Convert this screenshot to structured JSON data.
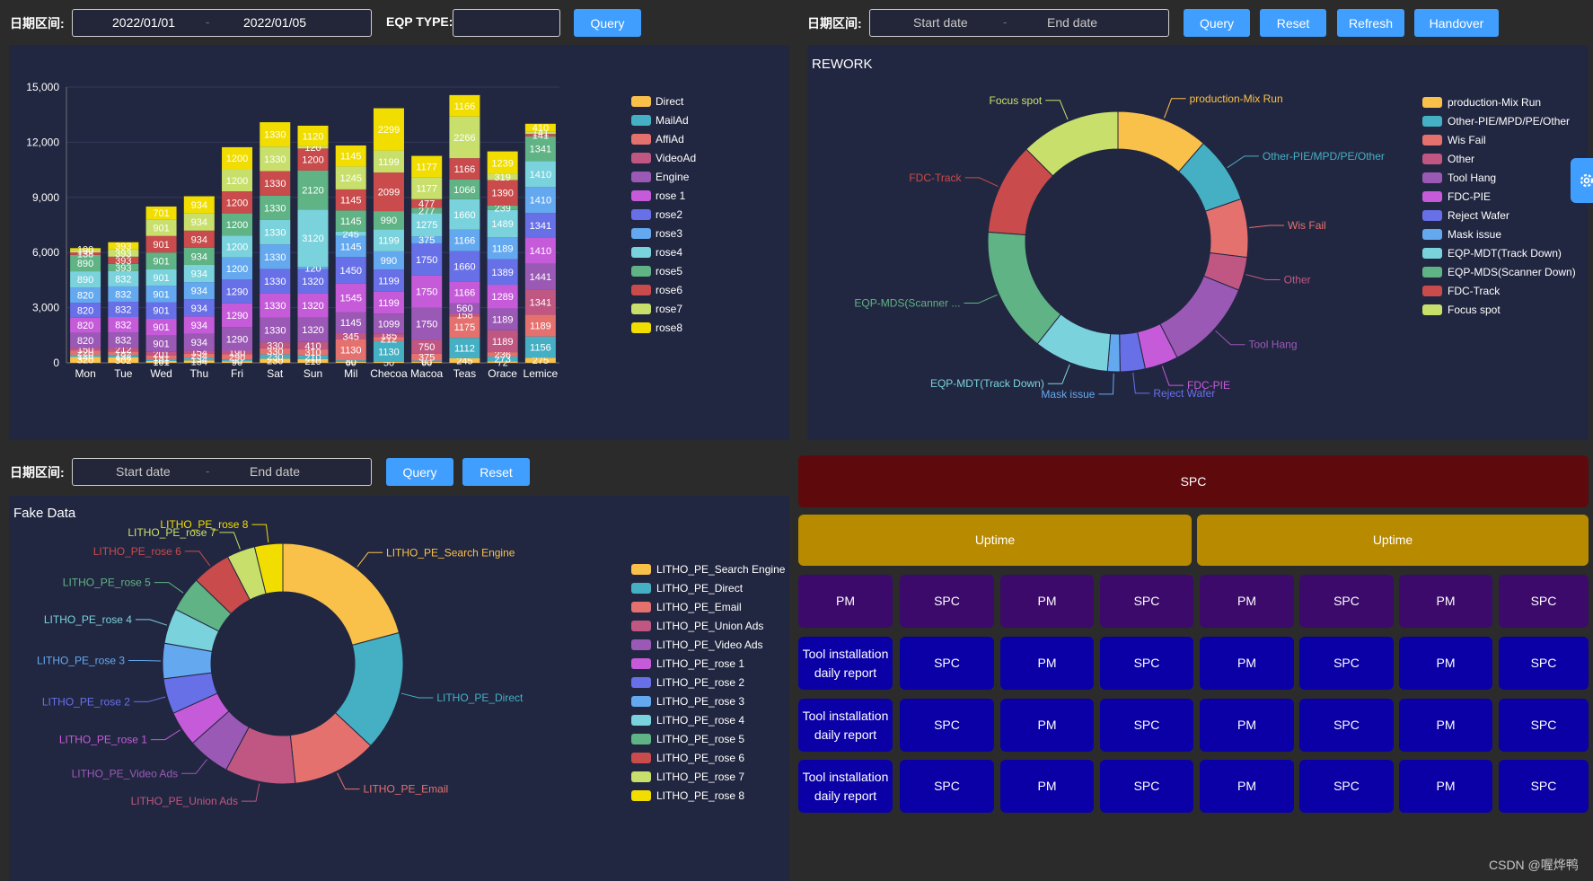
{
  "colors": {
    "bg": "#2b2b2b",
    "panel": "#222741",
    "button": "#409eff",
    "palette": [
      "#f9c14a",
      "#45b0c4",
      "#e5716f",
      "#c05782",
      "#9b59b6",
      "#c65bd9",
      "#6870e8",
      "#64a9ef",
      "#7ad2dc",
      "#5fb384",
      "#c94b4b",
      "#c8e06b",
      "#f1de00"
    ]
  },
  "top_left": {
    "date_label": "日期区间:",
    "start_value": "2022/01/01",
    "separator": "-",
    "end_value": "2022/01/05",
    "eqp_label": "EQP TYPE:",
    "eqp_value": "",
    "query_label": "Query"
  },
  "top_right": {
    "date_label": "日期区间:",
    "start_placeholder": "Start date",
    "separator": "-",
    "end_placeholder": "End date",
    "query_label": "Query",
    "reset_label": "Reset",
    "refresh_label": "Refresh",
    "handover_label": "Handover"
  },
  "bottom_left": {
    "date_label": "日期区间:",
    "start_placeholder": "Start date",
    "separator": "-",
    "end_placeholder": "End date",
    "query_label": "Query",
    "reset_label": "Reset"
  },
  "tiles": {
    "row0": [
      "SPC"
    ],
    "row1": [
      "Uptime",
      "Uptime"
    ],
    "row2": [
      "PM",
      "SPC",
      "PM",
      "SPC",
      "PM",
      "SPC",
      "PM",
      "SPC"
    ],
    "row3": [
      "Tool installation daily report",
      "SPC",
      "PM",
      "SPC",
      "PM",
      "SPC",
      "PM",
      "SPC"
    ],
    "row4": [
      "Tool installation daily report",
      "SPC",
      "PM",
      "SPC",
      "PM",
      "SPC",
      "PM",
      "SPC"
    ],
    "row5": [
      "Tool installation daily report",
      "SPC",
      "PM",
      "SPC",
      "PM",
      "SPC",
      "PM",
      "SPC"
    ]
  },
  "watermark": "CSDN @喔烨鸭",
  "chart_data": [
    {
      "type": "bar",
      "stacked": true,
      "title": "",
      "categories": [
        "Mon",
        "Tue",
        "Wed",
        "Thu",
        "Fri",
        "Sat",
        "Sun",
        "Mil",
        "Checoa",
        "Macoa",
        "Teas",
        "Orace",
        "Lemice"
      ],
      "ylim": [
        0,
        15000
      ],
      "yticks": [
        "0",
        "3,000",
        "6,000",
        "9,000",
        "12,000",
        "15,000"
      ],
      "legend_position": "right",
      "series": [
        {
          "name": "Direct",
          "values": [
            320,
            302,
            101,
            134,
            90,
            230,
            210,
            60,
            50,
            60,
            245,
            72,
            275
          ]
        },
        {
          "name": "MailAd",
          "values": [
            120,
            132,
            101,
            134,
            90,
            230,
            210,
            80,
            1130,
            65,
            1112,
            273,
            1156
          ]
        },
        {
          "name": "AffiAd",
          "values": [
            220,
            182,
            191,
            234,
            290,
            330,
            310,
            1130,
            212,
            375,
            1175,
            236,
            1189
          ]
        },
        {
          "name": "VideoAd",
          "values": [
            150,
            212,
            201,
            154,
            190,
            330,
            410,
            345,
            185,
            750,
            158,
            1189,
            1341
          ]
        },
        {
          "name": "Engine",
          "values": [
            820,
            832,
            901,
            934,
            1290,
            1330,
            1320,
            1145,
            1099,
            1750,
            560,
            1189,
            1441
          ]
        },
        {
          "name": "rose 1",
          "values": [
            820,
            832,
            901,
            934,
            1290,
            1330,
            1320,
            1545,
            1199,
            1750,
            1166,
            1289,
            1410
          ]
        },
        {
          "name": "rose2",
          "values": [
            820,
            832,
            901,
            934,
            1290,
            1330,
            1320,
            1450,
            1199,
            1750,
            1660,
            1389,
            1341
          ]
        },
        {
          "name": "rose3",
          "values": [
            820,
            832,
            901,
            934,
            1200,
            1330,
            120,
            1145,
            990,
            375,
            1166,
            1189,
            1410
          ]
        },
        {
          "name": "rose4",
          "values": [
            890,
            832,
            901,
            934,
            1200,
            1330,
            3120,
            245,
            1199,
            1275,
            1660,
            1489,
            1410
          ]
        },
        {
          "name": "rose5",
          "values": [
            890,
            393,
            901,
            934,
            1200,
            1330,
            2120,
            1145,
            990,
            277,
            1066,
            239,
            1341
          ]
        },
        {
          "name": "rose6",
          "values": [
            138,
            393,
            901,
            934,
            1200,
            1330,
            1200,
            1145,
            2099,
            477,
            1166,
            1390,
            141
          ]
        },
        {
          "name": "rose7",
          "values": [
            130,
            393,
            901,
            934,
            1200,
            1330,
            120,
            1245,
            1199,
            1177,
            2266,
            319,
            141
          ]
        },
        {
          "name": "rose8",
          "values": [
            100,
            393,
            701,
            934,
            1200,
            1330,
            1120,
            1145,
            2299,
            1177,
            1166,
            1239,
            410
          ]
        }
      ]
    },
    {
      "type": "pie",
      "donut": true,
      "title": "REWORK",
      "legend_position": "right",
      "slices": [
        {
          "name": "production-Mix Run",
          "value": 11
        },
        {
          "name": "Other-PIE/MPD/PE/Other",
          "value": 8
        },
        {
          "name": "Wis Fail",
          "value": 7
        },
        {
          "name": "Other",
          "value": 4
        },
        {
          "name": "Tool Hang",
          "value": 11
        },
        {
          "name": "FDC-PIE",
          "value": 4
        },
        {
          "name": "Reject Wafer",
          "value": 3
        },
        {
          "name": "Mask issue",
          "value": 1.5
        },
        {
          "name": "EQP-MDT(Track Down)",
          "value": 9
        },
        {
          "name": "EQP-MDS(Scanner Down)",
          "value": 15
        },
        {
          "name": "FDC-Track",
          "value": 11
        },
        {
          "name": "Focus spot",
          "value": 12
        }
      ],
      "outer_labels": [
        "production-Mix Run",
        "Other-PIE/MPD/PE/Other",
        "Wis Fail",
        "Other",
        "Tool Hang",
        "FDC-PIE",
        "Reject Wafer",
        "Mask issue",
        "EQP-MDT(Track Down)",
        "EQP-MDS(Scanner ...",
        "FDC-Track",
        "Focus spot"
      ]
    },
    {
      "type": "pie",
      "donut": true,
      "title": "Fake Data",
      "legend_position": "right",
      "slices": [
        {
          "name": "LITHO_PE_Search Engine",
          "value": 22
        },
        {
          "name": "LITHO_PE_Direct",
          "value": 17
        },
        {
          "name": "LITHO_PE_Email",
          "value": 12
        },
        {
          "name": "LITHO_PE_Union Ads",
          "value": 10
        },
        {
          "name": "LITHO_PE_Video Ads",
          "value": 6
        },
        {
          "name": "LITHO_PE_rose 1",
          "value": 5
        },
        {
          "name": "LITHO_PE_rose 2",
          "value": 5
        },
        {
          "name": "LITHO_PE_rose 3",
          "value": 5
        },
        {
          "name": "LITHO_PE_rose 4",
          "value": 5
        },
        {
          "name": "LITHO_PE_rose 5",
          "value": 5
        },
        {
          "name": "LITHO_PE_rose 6",
          "value": 5.5
        },
        {
          "name": "LITHO_PE_rose 7",
          "value": 4
        },
        {
          "name": "LITHO_PE_rose 8",
          "value": 4
        }
      ]
    }
  ]
}
